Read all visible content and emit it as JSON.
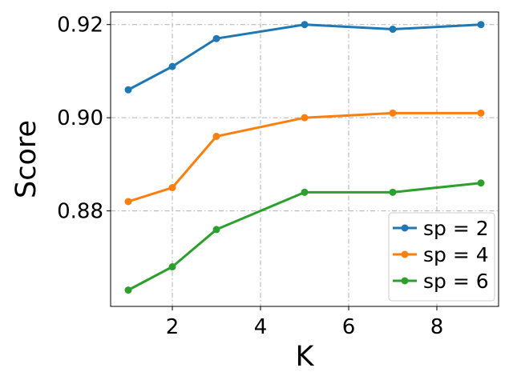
{
  "chart_data": {
    "type": "line",
    "title": "",
    "xlabel": "K",
    "ylabel": "Score",
    "xlim": [
      0.6,
      9.4
    ],
    "ylim": [
      0.8595,
      0.9227
    ],
    "xticks": [
      2,
      4,
      6,
      8
    ],
    "yticks": [
      0.88,
      0.9,
      0.92
    ],
    "ytick_labels": [
      "0.88",
      "0.90",
      "0.92"
    ],
    "grid": true,
    "legend_position": "lower-right",
    "x": [
      1,
      2,
      3,
      5,
      7,
      9
    ],
    "series": [
      {
        "name": "sp = 2",
        "color": "#1f77b4",
        "values": [
          0.906,
          0.911,
          0.917,
          0.92,
          0.919,
          0.92
        ]
      },
      {
        "name": "sp = 4",
        "color": "#ff7f0e",
        "values": [
          0.882,
          0.885,
          0.896,
          0.9,
          0.901,
          0.901
        ]
      },
      {
        "name": "sp = 6",
        "color": "#2ca02c",
        "values": [
          0.863,
          0.868,
          0.876,
          0.884,
          0.884,
          0.886
        ]
      }
    ]
  }
}
